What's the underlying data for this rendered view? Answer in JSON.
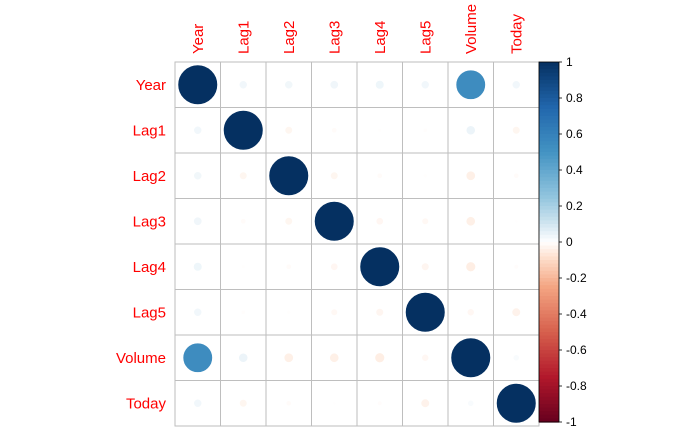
{
  "chart_data": {
    "type": "heatmap",
    "subtype": "correlation-circles",
    "variables": [
      "Year",
      "Lag1",
      "Lag2",
      "Lag3",
      "Lag4",
      "Lag5",
      "Volume",
      "Today"
    ],
    "matrix": [
      [
        1.0,
        0.03,
        0.031,
        0.033,
        0.036,
        0.03,
        0.539,
        0.03
      ],
      [
        0.03,
        1.0,
        -0.026,
        -0.011,
        -0.003,
        -0.006,
        0.041,
        -0.026
      ],
      [
        0.031,
        -0.026,
        1.0,
        -0.026,
        -0.011,
        -0.004,
        -0.043,
        -0.01
      ],
      [
        0.033,
        -0.011,
        -0.026,
        1.0,
        -0.024,
        -0.019,
        -0.042,
        -0.002
      ],
      [
        0.036,
        -0.003,
        -0.011,
        -0.024,
        1.0,
        -0.027,
        -0.048,
        -0.007
      ],
      [
        0.03,
        -0.006,
        -0.004,
        -0.019,
        -0.027,
        1.0,
        -0.022,
        -0.035
      ],
      [
        0.539,
        0.041,
        -0.043,
        -0.042,
        -0.048,
        -0.022,
        1.0,
        0.015
      ],
      [
        0.03,
        -0.026,
        -0.01,
        -0.002,
        -0.007,
        -0.035,
        0.015,
        1.0
      ]
    ],
    "colorbar": {
      "min": -1,
      "max": 1,
      "ticks": [
        "1",
        "0.8",
        "0.6",
        "0.4",
        "0.2",
        "0",
        "-0.2",
        "-0.4",
        "-0.6",
        "-0.8",
        "-1"
      ]
    },
    "colors": {
      "label": "#ff0000",
      "grid": "#bebebe",
      "negative_extreme": "#67001f",
      "positive_extreme": "#053061",
      "neutral": "#ffffff"
    },
    "grid": true,
    "legend": "right"
  }
}
